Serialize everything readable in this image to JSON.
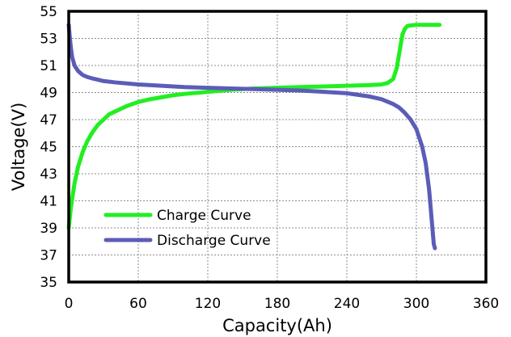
{
  "chart_data": {
    "type": "line",
    "title": "",
    "xlabel": "Capacity(Ah)",
    "ylabel": "Voltage(V)",
    "xlim": [
      0,
      360
    ],
    "ylim": [
      35,
      55
    ],
    "xticks": [
      0,
      60,
      120,
      180,
      240,
      300,
      360
    ],
    "yticks": [
      35,
      37,
      39,
      41,
      43,
      45,
      47,
      49,
      51,
      53,
      55
    ],
    "grid": true,
    "legend": "bottom-left",
    "series": [
      {
        "name": "Charge Curve",
        "color": "#22ee22",
        "x": [
          0,
          2,
          5,
          8,
          12,
          16,
          20,
          25,
          30,
          35,
          40,
          50,
          60,
          70,
          80,
          90,
          100,
          120,
          140,
          160,
          180,
          200,
          220,
          240,
          260,
          270,
          275,
          280,
          283,
          286,
          288,
          290,
          292,
          294,
          300,
          310,
          320
        ],
        "y": [
          39.0,
          40.6,
          42.3,
          43.5,
          44.6,
          45.4,
          46.0,
          46.6,
          47.0,
          47.4,
          47.6,
          48.0,
          48.3,
          48.5,
          48.65,
          48.8,
          48.9,
          49.05,
          49.2,
          49.3,
          49.35,
          49.4,
          49.45,
          49.5,
          49.55,
          49.6,
          49.7,
          50.0,
          50.8,
          52.3,
          53.3,
          53.7,
          53.9,
          53.95,
          54.0,
          54.0,
          54.0
        ]
      },
      {
        "name": "Discharge Curve",
        "color": "#5c5cb8",
        "x": [
          0,
          1,
          2,
          3,
          5,
          8,
          12,
          16,
          20,
          25,
          30,
          40,
          60,
          80,
          100,
          120,
          140,
          160,
          180,
          200,
          220,
          240,
          260,
          270,
          280,
          285,
          290,
          295,
          300,
          305,
          308,
          311,
          313,
          314,
          315,
          316
        ],
        "y": [
          54.0,
          53.0,
          52.2,
          51.6,
          51.0,
          50.6,
          50.3,
          50.15,
          50.05,
          49.95,
          49.85,
          49.75,
          49.6,
          49.5,
          49.4,
          49.35,
          49.3,
          49.25,
          49.2,
          49.15,
          49.05,
          48.95,
          48.7,
          48.5,
          48.15,
          47.9,
          47.5,
          47.0,
          46.3,
          45.0,
          43.8,
          41.8,
          39.8,
          38.8,
          37.8,
          37.5
        ]
      }
    ]
  }
}
